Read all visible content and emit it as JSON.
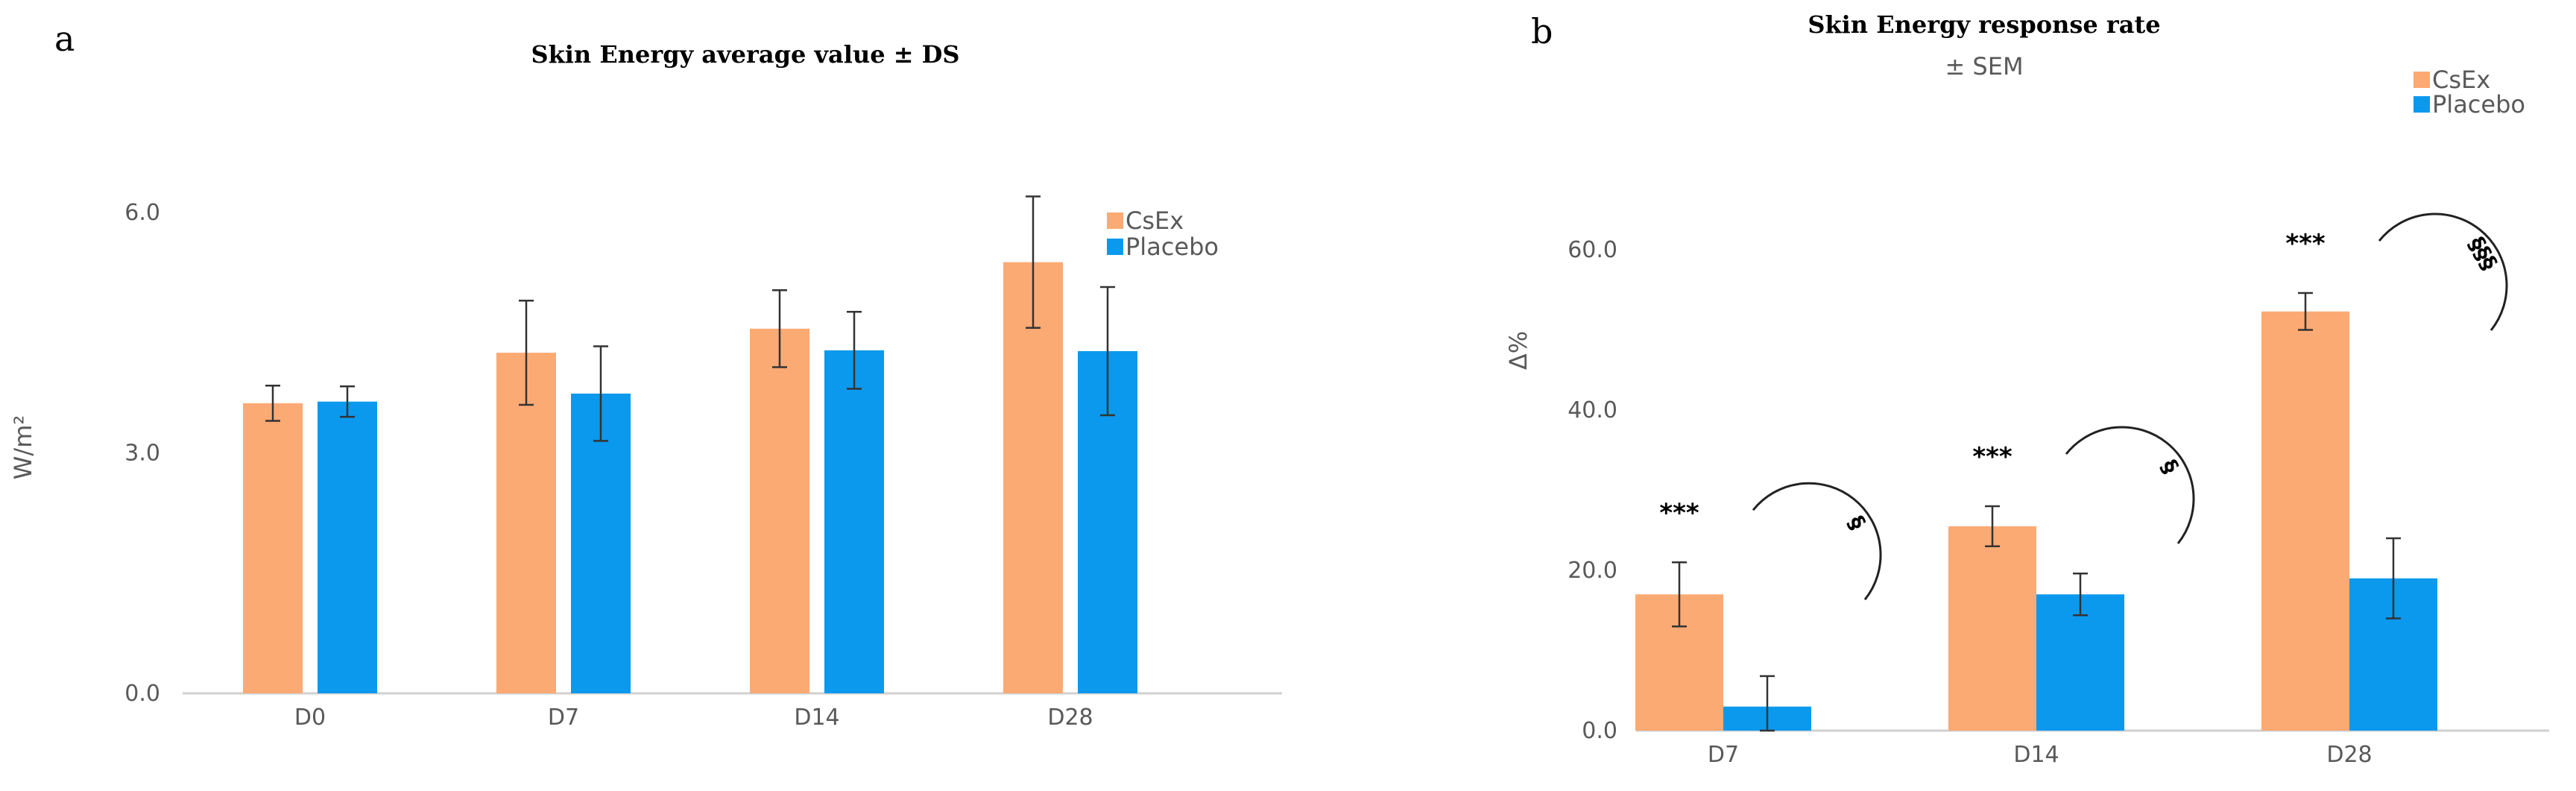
{
  "colors": {
    "csex": "#FCAA74",
    "placebo": "#0B99EE",
    "axis": "#D0D0D0",
    "error": "#333333",
    "text": "#595959"
  },
  "chart_data": [
    {
      "type": "bar",
      "panel": "a",
      "title": "Skin Energy average value ± DS",
      "xlabel": "",
      "ylabel": "W/m²",
      "ylim": [
        0,
        6.0
      ],
      "yticks": [
        0.0,
        3.0,
        6.0
      ],
      "ytick_labels": [
        "0.0",
        "3.0",
        "6.0"
      ],
      "grid": false,
      "legend_position": "top-right",
      "categories": [
        "D0",
        "D7",
        "D14",
        "D28"
      ],
      "series": [
        {
          "name": "CsEx",
          "color": "#FCAA74",
          "values": [
            3.62,
            4.25,
            4.55,
            5.38
          ],
          "errors": [
            0.22,
            0.65,
            0.48,
            0.82
          ]
        },
        {
          "name": "Placebo",
          "color": "#0B99EE",
          "values": [
            3.64,
            3.74,
            4.28,
            4.27
          ],
          "errors": [
            0.19,
            0.59,
            0.48,
            0.8
          ]
        }
      ],
      "annotations": []
    },
    {
      "type": "bar",
      "panel": "b",
      "title": "Skin Energy response rate",
      "subtitle": "± SEM",
      "xlabel": "",
      "ylabel": "Δ%",
      "ylim": [
        0,
        60.0
      ],
      "yticks": [
        0.0,
        20.0,
        40.0,
        60.0
      ],
      "ytick_labels": [
        "0.0",
        "20.0",
        "40.0",
        "60.0"
      ],
      "grid": false,
      "legend_position": "top-right",
      "categories": [
        "D7",
        "D14",
        "D28"
      ],
      "series": [
        {
          "name": "CsEx",
          "color": "#FCAA74",
          "values": [
            17.0,
            25.5,
            52.3
          ],
          "errors": [
            4.0,
            2.5,
            2.3
          ]
        },
        {
          "name": "Placebo",
          "color": "#0B99EE",
          "values": [
            3.0,
            17.0,
            19.0
          ],
          "errors": [
            3.8,
            2.6,
            5.0
          ]
        }
      ],
      "annotations": [
        {
          "category": "D7",
          "stars": "***",
          "symbol": "§"
        },
        {
          "category": "D14",
          "stars": "***",
          "symbol": "§"
        },
        {
          "category": "D28",
          "stars": "***",
          "symbol": "§§§"
        }
      ]
    }
  ]
}
